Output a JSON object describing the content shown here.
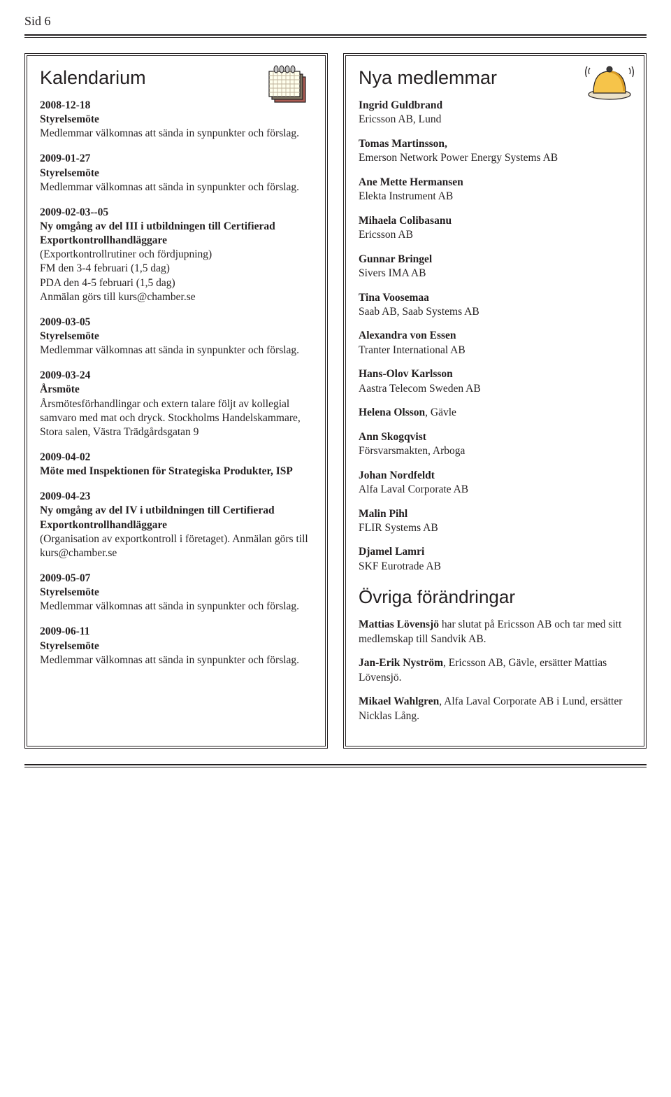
{
  "page_label": "Sid 6",
  "colors": {
    "text": "#231f20",
    "rule": "#231f20",
    "background": "#ffffff",
    "calendar": {
      "page": "#ffffed",
      "grid": "#bfb29a",
      "binder": "#c9c9c9",
      "shadow1": "#ad5c54",
      "shadow2": "#7f7561"
    },
    "bell": {
      "body": "#f6c44a",
      "shadow": "#d89a24",
      "base": "#ebe1c8",
      "button": "#3a3a3a"
    }
  },
  "left": {
    "heading": "Kalendarium",
    "events": [
      {
        "date": "2008-12-18",
        "title": "Styrelsemöte",
        "body": "Medlemmar välkomnas att sända in synpunkter och förslag."
      },
      {
        "date": "2009-01-27",
        "title": "Styrelsemöte",
        "body": "Medlemmar välkomnas att sända in synpunkter och förslag."
      },
      {
        "date": "2009-02-03--05",
        "title": "Ny omgång av del III i utbildningen till Certifierad Exportkontrollhandläggare",
        "body": "(Exportkontrollrutiner och fördjupning)\nFM den 3-4 februari (1,5 dag)\nPDA den 4-5 februari (1,5 dag)\nAnmälan görs till kurs@chamber.se"
      },
      {
        "date": "2009-03-05",
        "title": "Styrelsemöte",
        "body": "Medlemmar välkomnas att sända in synpunkter och förslag."
      },
      {
        "date": "2009-03-24",
        "title": "Årsmöte",
        "body": "Årsmötesförhandlingar och extern talare följt av kollegial samvaro med mat och dryck. Stockholms Handelskammare, Stora salen, Västra Trädgårdsgatan 9"
      },
      {
        "date": "2009-04-02",
        "title": "Möte med Inspektionen för Strategiska Produkter, ISP",
        "body": ""
      },
      {
        "date": "2009-04-23",
        "title": "Ny omgång av del IV i utbildningen till Certifierad Exportkontrollhandläggare",
        "body": "(Organisation av exportkontroll i företaget). Anmälan görs till kurs@chamber.se"
      },
      {
        "date": "2009-05-07",
        "title": "Styrelsemöte",
        "body": "Medlemmar välkomnas att sända in synpunkter och förslag."
      },
      {
        "date": "2009-06-11",
        "title": "Styrelsemöte",
        "body": "Medlemmar välkomnas att sända in synpunkter och förslag."
      }
    ]
  },
  "right": {
    "heading": "Nya medlemmar",
    "members": [
      {
        "name": "Ingrid Guldbrand",
        "org": "Ericsson AB, Lund"
      },
      {
        "name": "Tomas Martinsson,",
        "org": "Emerson Network Power Energy Systems AB"
      },
      {
        "name": "Ane Mette Hermansen",
        "org": "Elekta Instrument AB"
      },
      {
        "name": "Mihaela Colibasanu",
        "org": "Ericsson AB"
      },
      {
        "name": "Gunnar Bringel",
        "org": "Sivers IMA AB"
      },
      {
        "name": "Tina Voosemaa",
        "org": "Saab AB, Saab Systems AB"
      },
      {
        "name": "Alexandra von Essen",
        "org": "Tranter International AB"
      },
      {
        "name": "Hans-Olov Karlsson",
        "org": "Aastra Telecom Sweden AB"
      },
      {
        "name": "Helena Olsson",
        "org": ", Gävle",
        "inline": true
      },
      {
        "name": "Ann Skogqvist",
        "org": "Försvarsmakten, Arboga"
      },
      {
        "name": "Johan Nordfeldt",
        "org": "Alfa Laval Corporate AB"
      },
      {
        "name": "Malin Pihl",
        "org": "FLIR Systems AB"
      },
      {
        "name": "Djamel Lamri",
        "org": "SKF Eurotrade AB"
      }
    ],
    "changes_heading": "Övriga förändringar",
    "changes": [
      {
        "name": "Mattias Lövensjö",
        "rest": " har slutat på Ericsson AB och tar med sitt medlemskap till Sandvik AB."
      },
      {
        "name": "Jan-Erik Nyström",
        "rest": ", Ericsson AB, Gävle, ersätter Mattias Lövensjö."
      },
      {
        "name": "Mikael Wahlgren",
        "rest": ", Alfa Laval Corporate AB i Lund, ersätter Nicklas Lång."
      }
    ]
  }
}
